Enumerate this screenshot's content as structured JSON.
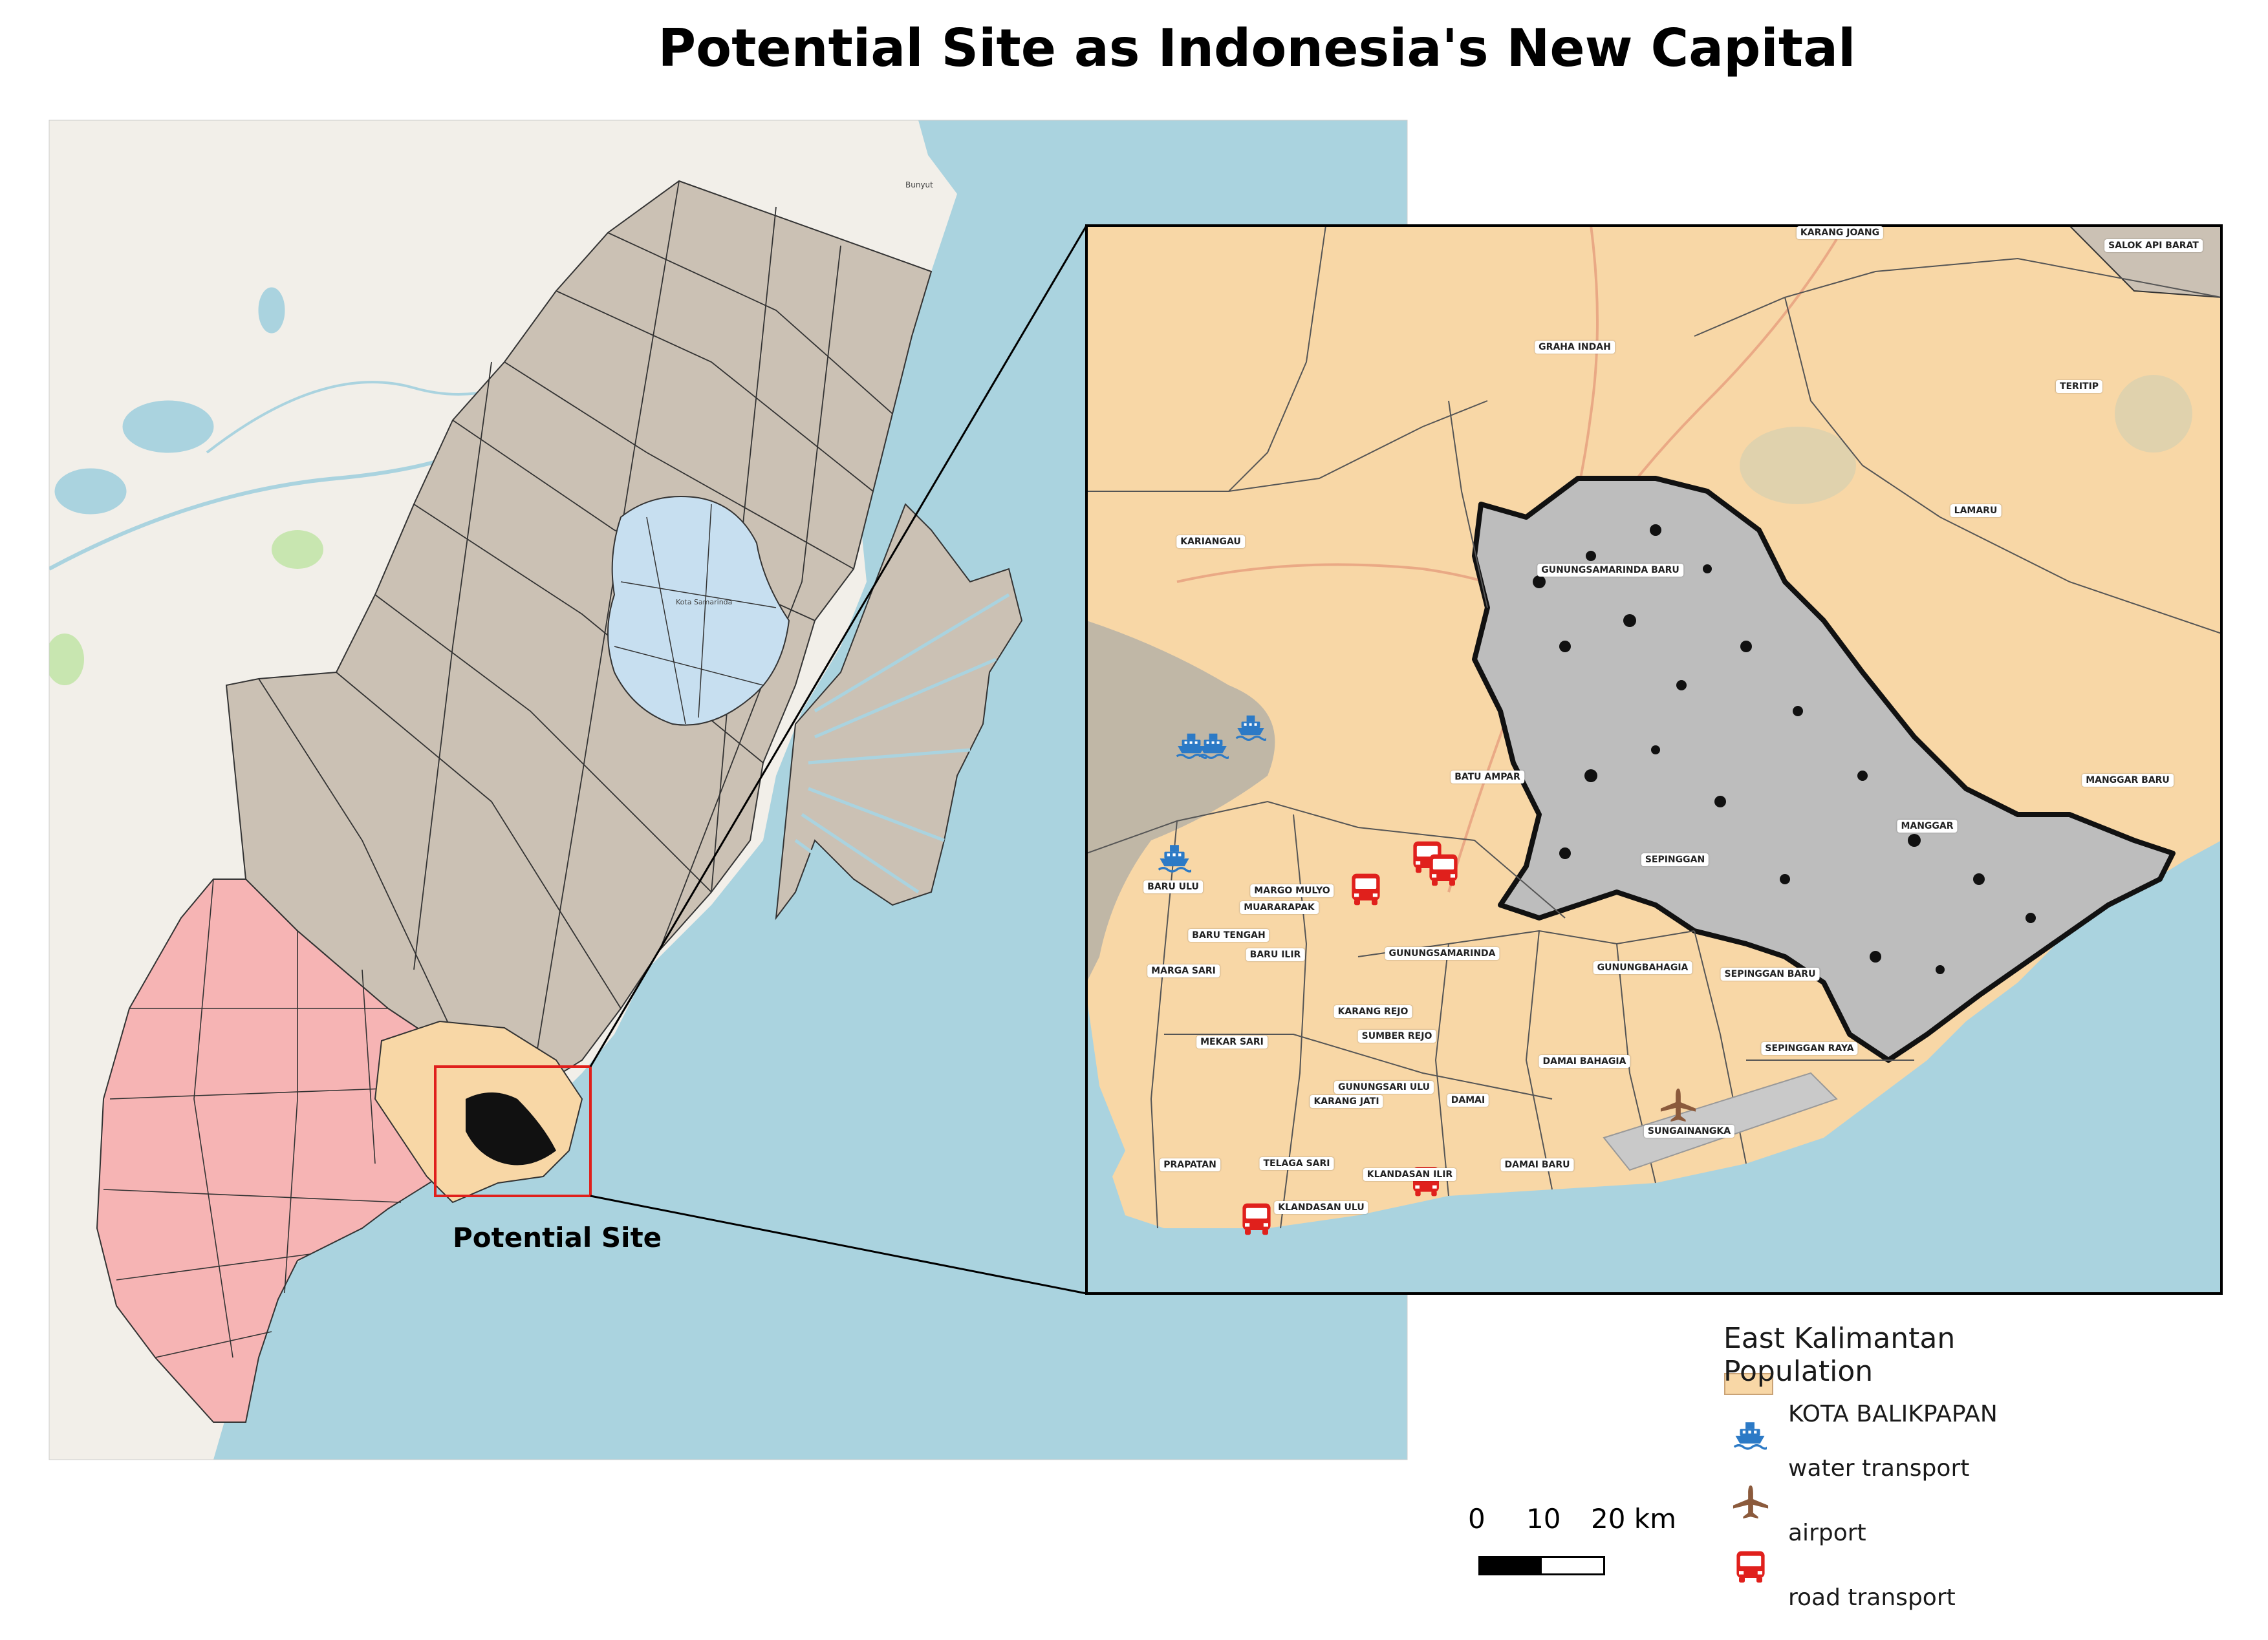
{
  "title": "Potential Site as Indonesia's New Capital",
  "overview_map": {
    "site_label": "Potential Site",
    "place_labels": [
      "Bunyut",
      "Kota Samarinda"
    ]
  },
  "inset_map": {
    "district_labels": [
      "KARANG JOANG",
      "SALOK API BARAT",
      "GRAHA INDAH",
      "TERITIP",
      "LAMARU",
      "KARIANGAU",
      "GUNUNGSAMARINDA BARU",
      "BATU AMPAR",
      "MANGGAR BARU",
      "MANGGAR",
      "SEPINGGAN",
      "BARU ULU",
      "MARGO MULYO",
      "MUARARAPAK",
      "BARU TENGAH",
      "BARU ILIR",
      "MARGA SARI",
      "GUNUNGSAMARINDA",
      "GUNUNGBAHAGIA",
      "SEPINGGAN BARU",
      "KARANG REJO",
      "SUMBER REJO",
      "MEKAR SARI",
      "DAMAI BAHAGIA",
      "SEPINGGAN RAYA",
      "GUNUNGSARI ULU",
      "KARANG JATI",
      "DAMAI",
      "SUNGAINANGKA",
      "PRAPATAN",
      "TELAGA SARI",
      "KLANDASAN ILIR",
      "DAMAI BARU",
      "KLANDASAN ULU"
    ]
  },
  "legend": {
    "title": "East Kalimantan Population",
    "items": [
      {
        "label": "KOTA BALIKPAPAN",
        "icon": "fill-swatch",
        "color": "#f8d7a6"
      },
      {
        "label": "water transport",
        "icon": "ship-icon",
        "color": "#2c7ac6"
      },
      {
        "label": "airport",
        "icon": "airplane-icon",
        "color": "#8b5a3c"
      },
      {
        "label": "road transport",
        "icon": "bus-icon",
        "color": "#e0201c"
      }
    ]
  },
  "scale_bar": {
    "labels": [
      "0",
      "10",
      "20 km"
    ]
  },
  "colors": {
    "sea": "#aad3df",
    "land": "#f2efe9",
    "kutai_kartanegara": "#cbc1b4",
    "samarinda": "#c7dff0",
    "penajam": "#f6b4b4",
    "balikpapan": "#f8d7a6",
    "urban": "#bdbdbd",
    "highlight": "#e0201c"
  }
}
